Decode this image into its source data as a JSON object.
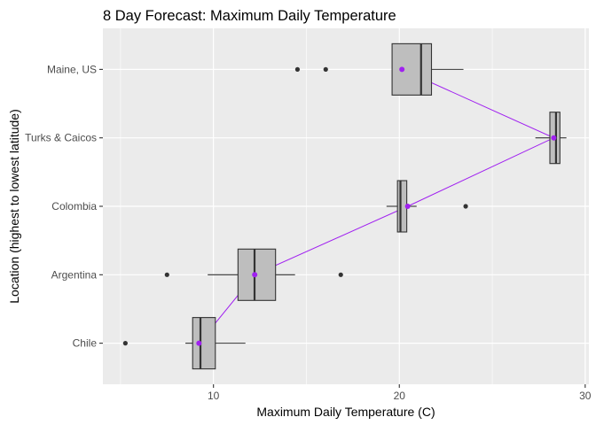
{
  "chart_data": {
    "type": "boxplot",
    "title": "8 Day Forecast: Maximum Daily Temperature",
    "xlabel": "Maximum Daily Temperature (C)",
    "ylabel": "Location (highest to lowest latitude)",
    "xlim": [
      4.05,
      30.2
    ],
    "x_ticks": [
      10,
      20,
      30
    ],
    "x_tick_labels": [
      "10",
      "20",
      "30"
    ],
    "x_minor_grid": [
      5,
      15,
      25
    ],
    "grid": true,
    "categories": [
      "Maine, US",
      "Turks & Caicos",
      "Colombia",
      "Argentina",
      "Chile"
    ],
    "boxes": [
      {
        "category": "Maine, US",
        "whisker_low": 19.61,
        "q1": 19.61,
        "median": 21.17,
        "q3": 21.73,
        "whisker_high": 23.45,
        "outliers": [
          14.52,
          16.04
        ],
        "mean": 20.14
      },
      {
        "category": "Turks & Caicos",
        "whisker_low": 27.32,
        "q1": 28.1,
        "median": 28.43,
        "q3": 28.64,
        "whisker_high": 28.99,
        "outliers": [],
        "mean": 28.31
      },
      {
        "category": "Colombia",
        "whisker_low": 19.31,
        "q1": 19.9,
        "median": 20.06,
        "q3": 20.4,
        "whisker_high": 20.93,
        "outliers": [
          23.57
        ],
        "mean": 20.45
      },
      {
        "category": "Argentina",
        "whisker_low": 9.69,
        "q1": 11.32,
        "median": 12.21,
        "q3": 13.34,
        "whisker_high": 14.39,
        "outliers": [
          7.5,
          16.85
        ],
        "mean": 12.22
      },
      {
        "category": "Chile",
        "whisker_low": 8.49,
        "q1": 8.88,
        "median": 9.3,
        "q3": 10.1,
        "whisker_high": 11.72,
        "outliers": [
          5.26
        ],
        "mean": 9.22
      }
    ],
    "mean_line": {
      "name": "mean",
      "color": "#A020F0"
    },
    "colors": {
      "panel": "#EBEBEB",
      "grid": "#FFFFFF",
      "box_fill": "#BEBEBE",
      "box_line": "#333333",
      "outlier": "#333333"
    }
  }
}
